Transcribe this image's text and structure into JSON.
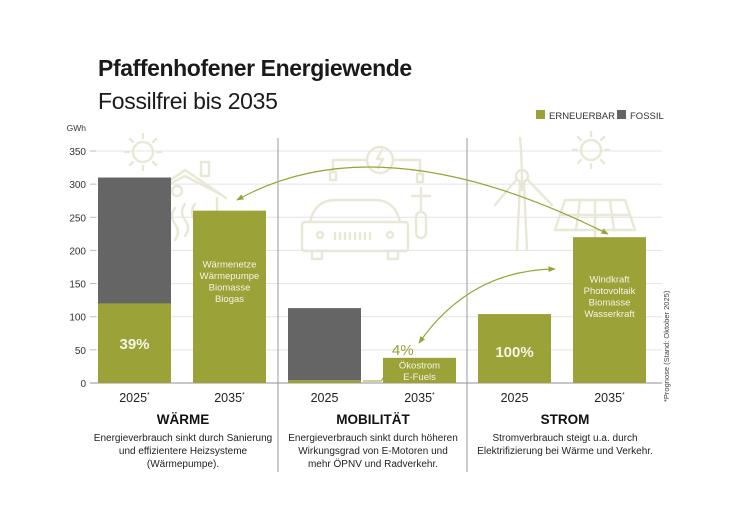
{
  "header": {
    "title": "Pfaffenhofener Energiewende",
    "subtitle": "Fossilfrei bis 2035"
  },
  "colors": {
    "renewable": "#9ba237",
    "fossil": "#656565",
    "grid": "#e4e4e4",
    "background_icons": "#ecebdc",
    "divider": "#9a9a9a"
  },
  "legend": [
    {
      "label": "ERNEUERBAR",
      "color": "#9ba237"
    },
    {
      "label": "FOSSIL",
      "color": "#656565"
    }
  ],
  "footnote": "*Prognose (Stand: Oktober 2025)",
  "chart_data": {
    "type": "bar",
    "stacked": true,
    "ylabel": "GWh",
    "ylim": [
      0,
      350
    ],
    "yticks": [
      0,
      50,
      100,
      150,
      200,
      250,
      300,
      350
    ],
    "grid": true,
    "legend_position": "top-right",
    "groups": [
      {
        "name": "WÄRME",
        "description": [
          "Energieverbrauch sinkt durch Sanierung",
          "und effizientere Heizsysteme",
          "(Wärmepumpe)."
        ],
        "bars": [
          {
            "x_label": "2025",
            "asterisk": true,
            "renewable": 120,
            "fossil": 190,
            "label": "39%",
            "label_lines": []
          },
          {
            "x_label": "2035",
            "asterisk": true,
            "renewable": 260,
            "fossil": 0,
            "label": "",
            "label_lines": [
              "Wärmenetze",
              "Wärmepumpe",
              "Biomasse",
              "Biogas"
            ]
          }
        ],
        "icon": "house-with-sun-and-heat-icon"
      },
      {
        "name": "MOBILITÄT",
        "description": [
          "Energieverbrauch sinkt durch höheren",
          "Wirkungsgrad von E-Motoren und",
          "mehr ÖPNV und Radverkehr."
        ],
        "bars": [
          {
            "x_label": "2025",
            "asterisk": false,
            "renewable": 4,
            "fossil": 109,
            "label": "4%",
            "label_lines": []
          },
          {
            "x_label": "2035",
            "asterisk": true,
            "renewable": 38,
            "fossil": 0,
            "label": "",
            "label_lines": [
              "Ökostrom",
              "E-Fuels"
            ]
          }
        ],
        "icon": "car-and-ebike-charging-icon"
      },
      {
        "name": "STROM",
        "description": [
          "Stromverbrauch steigt u.a. durch",
          "Elektrifizierung bei Wärme und Verkehr."
        ],
        "bars": [
          {
            "x_label": "2025",
            "asterisk": false,
            "renewable": 104,
            "fossil": 0,
            "label": "100%",
            "label_lines": []
          },
          {
            "x_label": "2035",
            "asterisk": true,
            "renewable": 220,
            "fossil": 0,
            "label": "",
            "label_lines": [
              "Windkraft",
              "Photovoltaik",
              "Biomasse",
              "Wasserkraft"
            ]
          }
        ],
        "icon": "wind-turbine-solar-panel-sun-icon"
      }
    ],
    "annotations": [
      "Arrow from STROM 2035 to WÄRME 2035 (electricity feeds heat)",
      "Arrow from STROM 2035 to MOBILITÄT 2035 (electricity feeds mobility)"
    ]
  }
}
